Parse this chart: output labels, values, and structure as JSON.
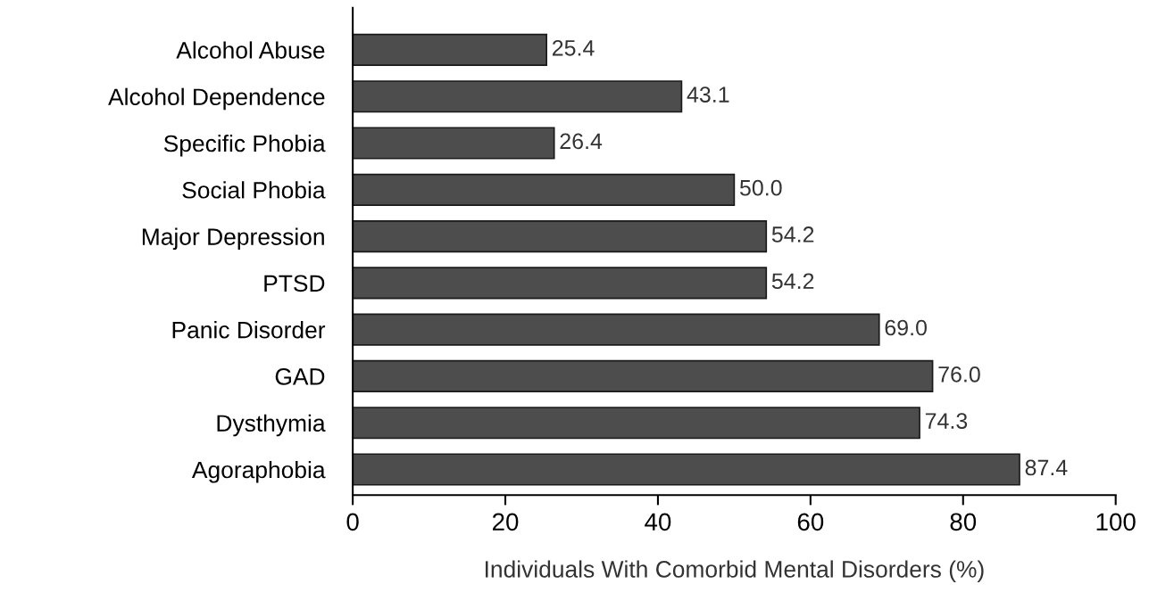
{
  "chart_data": {
    "type": "bar",
    "orientation": "horizontal",
    "xlabel": "Individuals With Comorbid Mental Disorders (%)",
    "categories": [
      "Alcohol Abuse",
      "Alcohol Dependence",
      "Specific Phobia",
      "Social Phobia",
      "Major Depression",
      "PTSD",
      "Panic Disorder",
      "GAD",
      "Dysthymia",
      "Agoraphobia"
    ],
    "values": [
      25.4,
      43.1,
      26.4,
      50.0,
      54.2,
      54.2,
      69.0,
      76.0,
      74.3,
      87.4
    ],
    "value_labels": [
      "25.4",
      "43.1",
      "26.4",
      "50.0",
      "54.2",
      "54.2",
      "69.0",
      "76.0",
      "74.3",
      "87.4"
    ],
    "color": "#4d4d4d",
    "xlim": [
      0,
      100
    ],
    "xticks": [
      0,
      20,
      40,
      60,
      80,
      100
    ],
    "grid": false,
    "legend": false
  }
}
